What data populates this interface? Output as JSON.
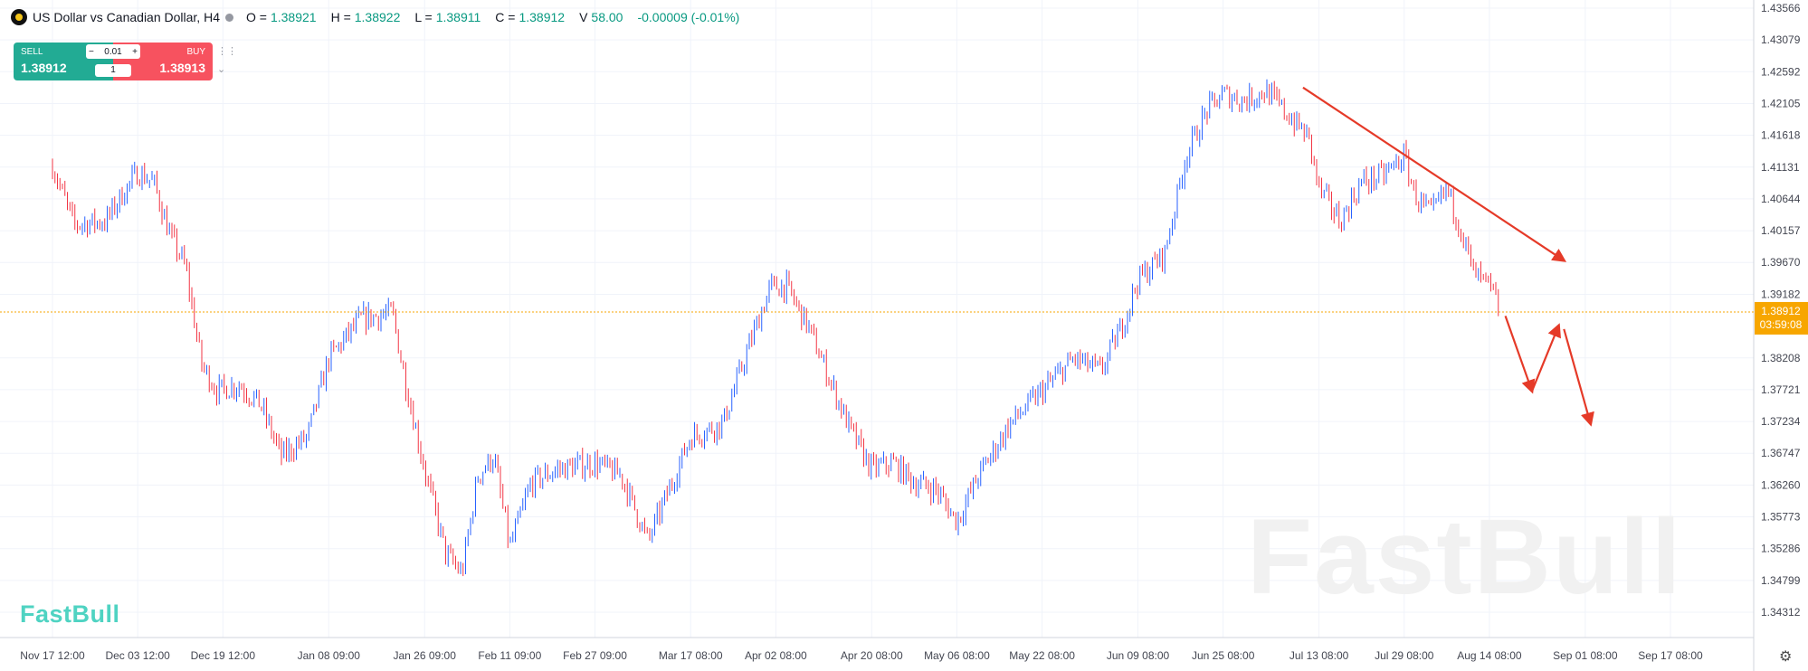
{
  "header": {
    "title": "US Dollar vs Canadian Dollar, H4",
    "ohlc": [
      {
        "key": "O =",
        "value": "1.38921"
      },
      {
        "key": "H =",
        "value": "1.38922"
      },
      {
        "key": "L =",
        "value": "1.38911"
      },
      {
        "key": "C =",
        "value": "1.38912"
      },
      {
        "key": "V",
        "value": "58.00"
      }
    ],
    "change": "-0.00009 (-0.01%)"
  },
  "trade": {
    "sell_label": "SELL",
    "sell_price": "1.38912",
    "buy_label": "BUY",
    "buy_price": "1.38913",
    "lot": "0.01",
    "qty": "1",
    "minus": "−",
    "plus": "+"
  },
  "logo_text": "FastBull",
  "watermark": "FastBull",
  "colors": {
    "up": "#2962ff",
    "down": "#f23645",
    "price_label": "#f7a600",
    "arrow": "#e53a28",
    "sell": "#22ab94",
    "buy": "#f7525f"
  },
  "chart_data": {
    "type": "candlestick",
    "symbol": "USDCAD",
    "timeframe": "H4",
    "ylim": [
      1.34312,
      1.43566
    ],
    "y_ticks": [
      "1.43566",
      "1.43079",
      "1.42592",
      "1.42105",
      "1.41618",
      "1.41131",
      "1.40644",
      "1.40157",
      "1.39670",
      "1.39182",
      "1.38208",
      "1.37721",
      "1.37234",
      "1.36747",
      "1.36260",
      "1.35773",
      "1.35286",
      "1.34799",
      "1.34312"
    ],
    "x_ticks": [
      "Nov 17 12:00",
      "Dec 03 12:00",
      "Dec 19 12:00",
      "Jan 08 09:00",
      "Jan 26 09:00",
      "Feb 11 09:00",
      "Feb 27 09:00",
      "Mar 17 08:00",
      "Apr 02 08:00",
      "Apr 20 08:00",
      "May 06 08:00",
      "May 22 08:00",
      "Jun 09 08:00",
      "Jun 25 08:00",
      "Jul 13 08:00",
      "Jul 29 08:00",
      "Aug 14 08:00",
      "Sep 01 08:00",
      "Sep 17 08:00"
    ],
    "current_price": "1.38912",
    "countdown": "03:59:08",
    "price_path": [
      [
        "Nov 17 12:00",
        1.4115
      ],
      [
        "Nov 21 12:00",
        1.4025
      ],
      [
        "Nov 27 12:00",
        1.403
      ],
      [
        "Nov 30 12:00",
        1.407
      ],
      [
        "Dec 03 12:00",
        1.4105
      ],
      [
        "Dec 06 12:00",
        1.409
      ],
      [
        "Dec 09 12:00",
        1.401
      ],
      [
        "Dec 12 12:00",
        1.396
      ],
      [
        "Dec 15 12:00",
        1.381
      ],
      [
        "Dec 18 12:00",
        1.377
      ],
      [
        "Dec 22 12:00",
        1.378
      ],
      [
        "Dec 26 12:00",
        1.375
      ],
      [
        "Dec 30 12:00",
        1.367
      ],
      [
        "Jan 04 09:00",
        1.37
      ],
      [
        "Jan 08 09:00",
        1.382
      ],
      [
        "Jan 14 09:00",
        1.388
      ],
      [
        "Jan 20 09:00",
        1.389
      ],
      [
        "Jan 22 09:00",
        1.38
      ],
      [
        "Jan 26 09:00",
        1.365
      ],
      [
        "Jan 30 09:00",
        1.352
      ],
      [
        "Feb 02 09:00",
        1.349
      ],
      [
        "Feb 05 09:00",
        1.364
      ],
      [
        "Feb 08 09:00",
        1.367
      ],
      [
        "Feb 11 09:00",
        1.353
      ],
      [
        "Feb 15 09:00",
        1.363
      ],
      [
        "Feb 20 09:00",
        1.365
      ],
      [
        "Feb 27 09:00",
        1.366
      ],
      [
        "Mar 04 08:00",
        1.364
      ],
      [
        "Mar 09 08:00",
        1.354
      ],
      [
        "Mar 12 08:00",
        1.36
      ],
      [
        "Mar 17 08:00",
        1.37
      ],
      [
        "Mar 23 08:00",
        1.372
      ],
      [
        "Mar 28 08:00",
        1.384
      ],
      [
        "Apr 01 08:00",
        1.393
      ],
      [
        "Apr 04 08:00",
        1.393
      ],
      [
        "Apr 08 08:00",
        1.387
      ],
      [
        "Apr 12 08:00",
        1.379
      ],
      [
        "Apr 16 08:00",
        1.371
      ],
      [
        "Apr 20 08:00",
        1.365
      ],
      [
        "Apr 24 08:00",
        1.366
      ],
      [
        "Apr 28 08:00",
        1.363
      ],
      [
        "May 02 08:00",
        1.362
      ],
      [
        "May 06 08:00",
        1.357
      ],
      [
        "May 10 08:00",
        1.364
      ],
      [
        "May 16 08:00",
        1.372
      ],
      [
        "May 22 08:00",
        1.377
      ],
      [
        "May 28 08:00",
        1.382
      ],
      [
        "Jun 02 08:00",
        1.38
      ],
      [
        "Jun 06 08:00",
        1.387
      ],
      [
        "Jun 09 08:00",
        1.394
      ],
      [
        "Jun 14 08:00",
        1.398
      ],
      [
        "Jun 18 08:00",
        1.413
      ],
      [
        "Jun 22 08:00",
        1.42
      ],
      [
        "Jun 25 08:00",
        1.4225
      ],
      [
        "Jun 29 08:00",
        1.4215
      ],
      [
        "Jul 03 08:00",
        1.423
      ],
      [
        "Jul 08 08:00",
        1.4185
      ],
      [
        "Jul 11 08:00",
        1.416
      ],
      [
        "Jul 13 08:00",
        1.408
      ],
      [
        "Jul 17 08:00",
        1.403
      ],
      [
        "Jul 21 08:00",
        1.409
      ],
      [
        "Jul 25 08:00",
        1.41
      ],
      [
        "Jul 29 08:00",
        1.413
      ],
      [
        "Jul 31 08:00",
        1.407
      ],
      [
        "Aug 03 08:00",
        1.404
      ],
      [
        "Aug 06 08:00",
        1.408
      ],
      [
        "Aug 09 08:00",
        1.401
      ],
      [
        "Aug 11 08:00",
        1.395
      ],
      [
        "Aug 14 08:00",
        1.393
      ],
      [
        "Aug 16 08:00",
        1.3891
      ]
    ],
    "annotations": [
      {
        "type": "arrow",
        "from": [
          "Jul 10 08:00",
          1.4235
        ],
        "to": [
          "Aug 28 08:00",
          1.397
        ]
      },
      {
        "type": "arrow",
        "from": [
          "Aug 17 08:00",
          1.3885
        ],
        "to": [
          "Aug 22 08:00",
          1.377
        ]
      },
      {
        "type": "arrow",
        "from": [
          "Aug 22 08:00",
          1.377
        ],
        "to": [
          "Aug 27 08:00",
          1.387
        ]
      },
      {
        "type": "arrow",
        "from": [
          "Aug 28 08:00",
          1.3865
        ],
        "to": [
          "Sep 02 08:00",
          1.372
        ]
      }
    ],
    "grid": true
  }
}
